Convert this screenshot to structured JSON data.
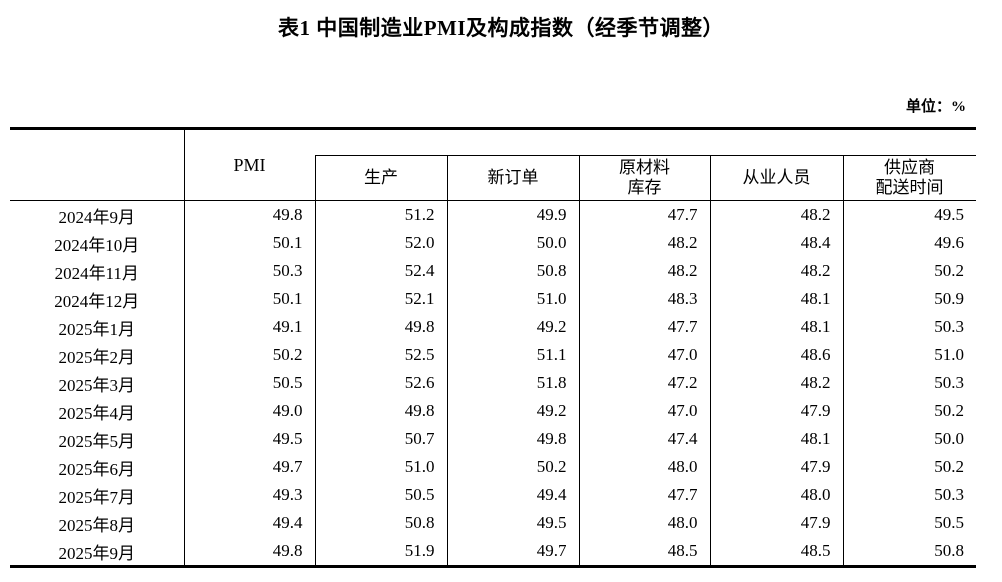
{
  "title": "表1 中国制造业PMI及构成指数（经季节调整）",
  "unit_label": "单位：%",
  "table": {
    "corner_label": "",
    "pmi_header": "PMI",
    "columns": [
      {
        "key": "production",
        "lines": [
          "生产"
        ]
      },
      {
        "key": "new_orders",
        "lines": [
          "新订单"
        ]
      },
      {
        "key": "raw_materials_inventory",
        "lines": [
          "原材料",
          "库存"
        ]
      },
      {
        "key": "employment",
        "lines": [
          "从业人员"
        ]
      },
      {
        "key": "supplier_delivery_time",
        "lines": [
          "供应商",
          "配送时间"
        ]
      }
    ],
    "rows": [
      {
        "month": "2024年9月",
        "values": [
          "49.8",
          "51.2",
          "49.9",
          "47.7",
          "48.2",
          "49.5"
        ]
      },
      {
        "month": "2024年10月",
        "values": [
          "50.1",
          "52.0",
          "50.0",
          "48.2",
          "48.4",
          "49.6"
        ]
      },
      {
        "month": "2024年11月",
        "values": [
          "50.3",
          "52.4",
          "50.8",
          "48.2",
          "48.2",
          "50.2"
        ]
      },
      {
        "month": "2024年12月",
        "values": [
          "50.1",
          "52.1",
          "51.0",
          "48.3",
          "48.1",
          "50.9"
        ]
      },
      {
        "month": "2025年1月",
        "values": [
          "49.1",
          "49.8",
          "49.2",
          "47.7",
          "48.1",
          "50.3"
        ]
      },
      {
        "month": "2025年2月",
        "values": [
          "50.2",
          "52.5",
          "51.1",
          "47.0",
          "48.6",
          "51.0"
        ]
      },
      {
        "month": "2025年3月",
        "values": [
          "50.5",
          "52.6",
          "51.8",
          "47.2",
          "48.2",
          "50.3"
        ]
      },
      {
        "month": "2025年4月",
        "values": [
          "49.0",
          "49.8",
          "49.2",
          "47.0",
          "47.9",
          "50.2"
        ]
      },
      {
        "month": "2025年5月",
        "values": [
          "49.5",
          "50.7",
          "49.8",
          "47.4",
          "48.1",
          "50.0"
        ]
      },
      {
        "month": "2025年6月",
        "values": [
          "49.7",
          "51.0",
          "50.2",
          "48.0",
          "47.9",
          "50.2"
        ]
      },
      {
        "month": "2025年7月",
        "values": [
          "49.3",
          "50.5",
          "49.4",
          "47.7",
          "48.0",
          "50.3"
        ]
      },
      {
        "month": "2025年8月",
        "values": [
          "49.4",
          "50.8",
          "49.5",
          "48.0",
          "47.9",
          "50.5"
        ]
      },
      {
        "month": "2025年9月",
        "values": [
          "49.8",
          "51.9",
          "49.7",
          "48.5",
          "48.5",
          "50.8"
        ]
      }
    ]
  }
}
